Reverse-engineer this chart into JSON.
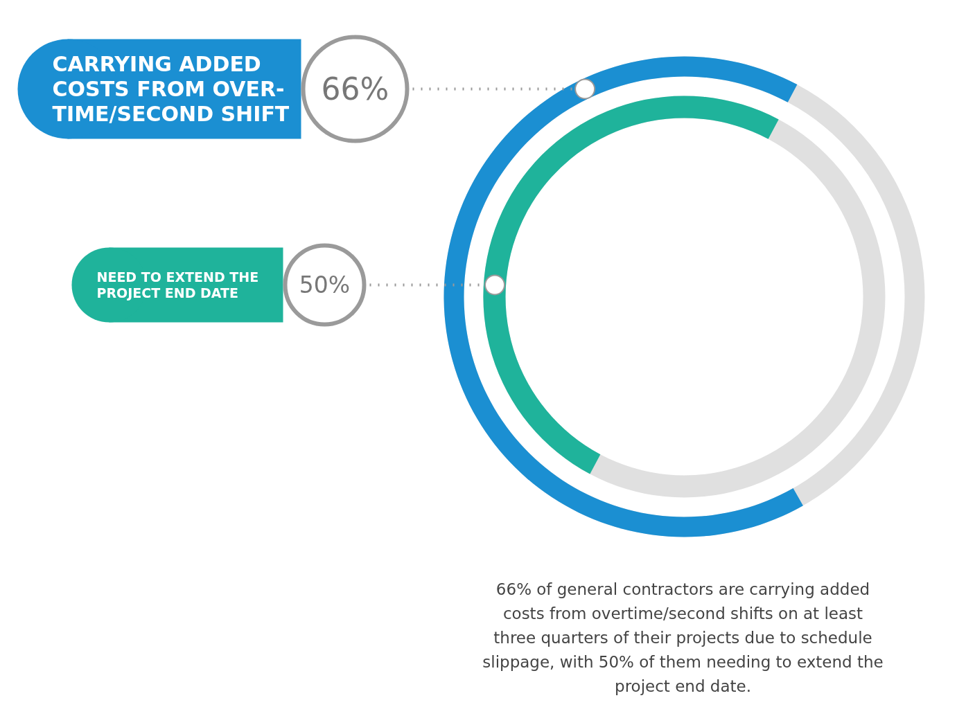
{
  "chart_data": {
    "type": "other",
    "categories": [
      "CARRYING ADDED COSTS FROM OVER-TIME/SECOND SHIFT",
      "NEED TO EXTEND THE PROJECT END DATE"
    ],
    "values": [
      66,
      50
    ],
    "value_labels": [
      "66%",
      "50%"
    ],
    "colors": [
      "#1b8fd2",
      "#1fb39b"
    ],
    "annotations": [
      "66% of general contractors are carrying added costs from overtime/second shifts on at least three quarters of their projects due to schedule slippage, with 50% of them needing to extend the project end date."
    ]
  }
}
